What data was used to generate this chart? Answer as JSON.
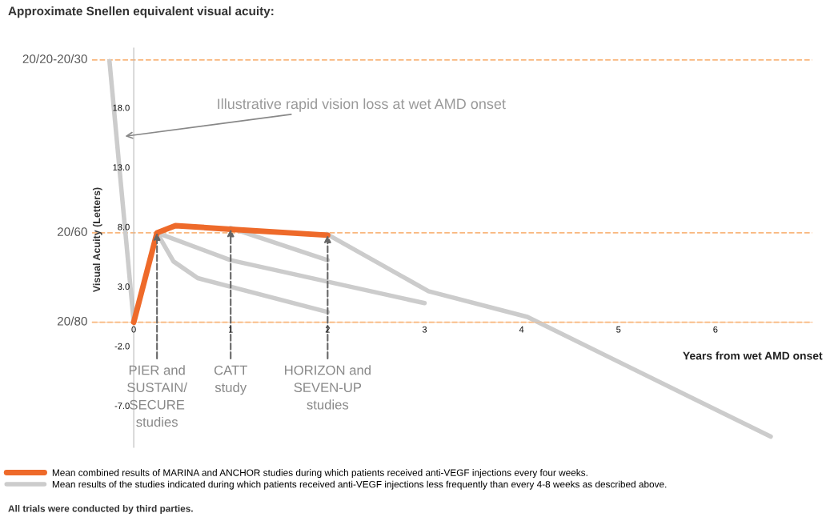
{
  "chart_data": {
    "type": "line",
    "title": "Approximate Snellen equivalent visual acuity:",
    "xlabel": "Years from wet AMD onset",
    "ylabel": "Visual Acuity (Letters)",
    "xlim": [
      -0.43,
      7.0
    ],
    "xticks": [
      0,
      1,
      2,
      3,
      4,
      5,
      6
    ],
    "ylim": [
      -10.5,
      23
    ],
    "yticks": [
      {
        "value": -7,
        "label": "-7.0"
      },
      {
        "value": -2,
        "label": "-2.0"
      },
      {
        "value": 3,
        "label": "3.0"
      },
      {
        "value": 8,
        "label": "8.0"
      },
      {
        "value": 13,
        "label": "13.0"
      },
      {
        "value": 18,
        "label": "18.0"
      }
    ],
    "grid": false,
    "legend": "bottom",
    "marker": "none",
    "line_style": "solid",
    "series": [
      {
        "name": "Mean combined results of MARINA and ANCHOR studies during which patients received anti-VEGF injections every four weeks.",
        "color": "#ee6a2a",
        "x": [
          0,
          0.24,
          0.43,
          1,
          2
        ],
        "values": [
          0,
          7.5,
          8.1,
          7.8,
          7.3
        ]
      },
      {
        "name": "Mean results of the studies indicated during which patients received anti-VEGF injections less frequently than every 4-8 weeks as described above.",
        "color": "#cccccc",
        "x": [
          -0.25,
          0
        ],
        "values": [
          21.9,
          0
        ]
      },
      {
        "color": "#cccccc",
        "x": [
          0.24,
          0.41,
          0.66,
          2
        ],
        "values": [
          7.5,
          5.1,
          3.7,
          0.85
        ]
      },
      {
        "color": "#cccccc",
        "x": [
          0.24,
          1,
          3
        ],
        "values": [
          7.5,
          5.2,
          1.6
        ]
      },
      {
        "color": "#cccccc",
        "x": [
          1,
          2
        ],
        "values": [
          7.9,
          5.2
        ]
      },
      {
        "color": "#cccccc",
        "x": [
          1.99,
          3.04,
          4.06,
          6.57
        ],
        "values": [
          7.4,
          2.6,
          0.44,
          -9.6
        ]
      }
    ],
    "ref_lines": [
      {
        "axis": "y",
        "value": 22,
        "color": "#f9b77e",
        "line_style": "dashed"
      },
      {
        "axis": "y",
        "value": 7.5,
        "color": "#f9b77e",
        "line_style": "dashed"
      },
      {
        "axis": "y",
        "value": 0,
        "color": "#f9b77e",
        "line_style": "dashed"
      }
    ],
    "annotations": [
      "Illustrative rapid vision loss at wet AMD onset",
      {
        "text": "20/20-20/30",
        "x": -0.43,
        "y": 22
      },
      {
        "text": "20/60",
        "x": -0.43,
        "y": 7.5
      },
      {
        "text": "20/80",
        "x": -0.43,
        "y": 0
      },
      {
        "text": "PIER and\nSUSTAIN/\nSECURE\nstudies",
        "x": 0.24,
        "y": 7.5
      },
      {
        "text": "CATT\nstudy",
        "x": 1,
        "y": 7.8
      },
      {
        "text": "HORIZON and\nSEVEN-UP\nstudies",
        "x": 2,
        "y": 7.3
      },
      "All trials were conducted by third parties."
    ]
  }
}
